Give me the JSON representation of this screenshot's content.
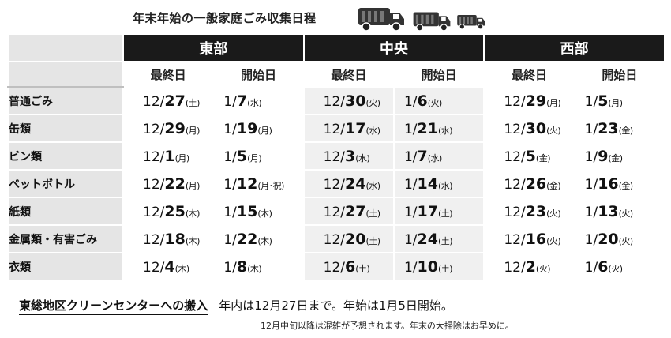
{
  "title": "年末年始の一般家庭ごみ収集日程",
  "icons": [
    "garbage-truck-icon"
  ],
  "regions": [
    "東部",
    "中央",
    "西部"
  ],
  "sub_headers": [
    "最終日",
    "開始日",
    "最終日",
    "開始日",
    "最終日",
    "開始日"
  ],
  "rows": [
    {
      "category": "普通ごみ",
      "dates": [
        {
          "m": "12/",
          "d": "27",
          "w": "(土)"
        },
        {
          "m": "1/",
          "d": "7",
          "w": "(水)"
        },
        {
          "m": "12/",
          "d": "30",
          "w": "(火)"
        },
        {
          "m": "1/",
          "d": "6",
          "w": "(火)"
        },
        {
          "m": "12/",
          "d": "29",
          "w": "(月)"
        },
        {
          "m": "1/",
          "d": "5",
          "w": "(月)"
        }
      ]
    },
    {
      "category": "缶類",
      "dates": [
        {
          "m": "12/",
          "d": "29",
          "w": "(月)"
        },
        {
          "m": "1/",
          "d": "19",
          "w": "(月)"
        },
        {
          "m": "12/",
          "d": "17",
          "w": "(水)"
        },
        {
          "m": "1/",
          "d": "21",
          "w": "(水)"
        },
        {
          "m": "12/",
          "d": "30",
          "w": "(火)"
        },
        {
          "m": "1/",
          "d": "23",
          "w": "(金)"
        }
      ]
    },
    {
      "category": "ビン類",
      "dates": [
        {
          "m": "12/",
          "d": "1",
          "w": "(月)"
        },
        {
          "m": "1/",
          "d": "5",
          "w": "(月)"
        },
        {
          "m": "12/",
          "d": "3",
          "w": "(水)"
        },
        {
          "m": "1/",
          "d": "7",
          "w": "(水)"
        },
        {
          "m": "12/",
          "d": "5",
          "w": "(金)"
        },
        {
          "m": "1/",
          "d": "9",
          "w": "(金)"
        }
      ]
    },
    {
      "category": "ペットボトル",
      "dates": [
        {
          "m": "12/",
          "d": "22",
          "w": "(月)"
        },
        {
          "m": "1/",
          "d": "12",
          "w": "(月･祝)"
        },
        {
          "m": "12/",
          "d": "24",
          "w": "(水)"
        },
        {
          "m": "1/",
          "d": "14",
          "w": "(水)"
        },
        {
          "m": "12/",
          "d": "26",
          "w": "(金)"
        },
        {
          "m": "1/",
          "d": "16",
          "w": "(金)"
        }
      ]
    },
    {
      "category": "紙類",
      "dates": [
        {
          "m": "12/",
          "d": "25",
          "w": "(木)"
        },
        {
          "m": "1/",
          "d": "15",
          "w": "(木)"
        },
        {
          "m": "12/",
          "d": "27",
          "w": "(土)"
        },
        {
          "m": "1/",
          "d": "17",
          "w": "(土)"
        },
        {
          "m": "12/",
          "d": "23",
          "w": "(火)"
        },
        {
          "m": "1/",
          "d": "13",
          "w": "(火)"
        }
      ]
    },
    {
      "category": "金属類・有害ごみ",
      "dates": [
        {
          "m": "12/",
          "d": "18",
          "w": "(木)"
        },
        {
          "m": "1/",
          "d": "22",
          "w": "(木)"
        },
        {
          "m": "12/",
          "d": "20",
          "w": "(土)"
        },
        {
          "m": "1/",
          "d": "24",
          "w": "(土)"
        },
        {
          "m": "12/",
          "d": "16",
          "w": "(火)"
        },
        {
          "m": "1/",
          "d": "20",
          "w": "(火)"
        }
      ]
    },
    {
      "category": "衣類",
      "dates": [
        {
          "m": "12/",
          "d": "4",
          "w": "(木)"
        },
        {
          "m": "1/",
          "d": "8",
          "w": "(木)"
        },
        {
          "m": "12/",
          "d": "6",
          "w": "(土)"
        },
        {
          "m": "1/",
          "d": "10",
          "w": "(土)"
        },
        {
          "m": "12/",
          "d": "2",
          "w": "(火)"
        },
        {
          "m": "1/",
          "d": "6",
          "w": "(火)"
        }
      ]
    }
  ],
  "footer": {
    "label": "東総地区クリーンセンターへの搬入",
    "message": "年内は12月27日まで。年始は1月5日開始。",
    "note": "12月中旬以降は混雑が予想されます。年末の大掃除はお早めに。"
  }
}
